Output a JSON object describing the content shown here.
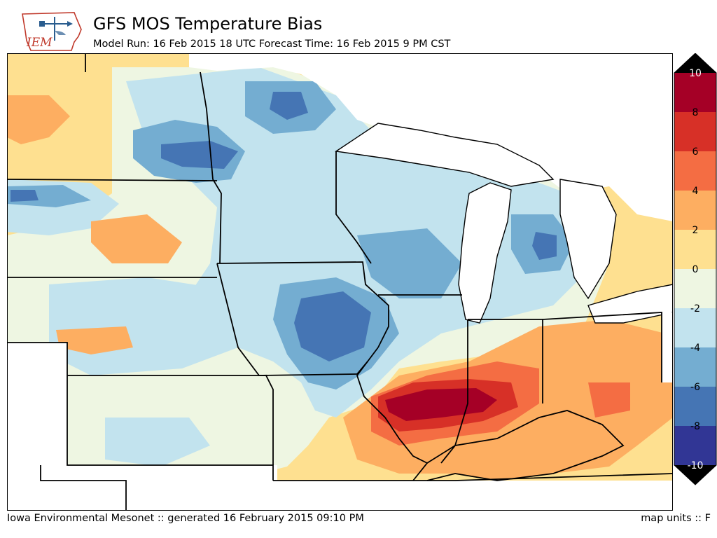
{
  "header": {
    "logo_text": "IEM",
    "title": "GFS MOS Temperature Bias",
    "subtitle": "Model Run: 16 Feb 2015 18 UTC Forecast Time: 16 Feb 2015 9 PM CST"
  },
  "footer": {
    "credit": "Iowa Environmental Mesonet :: generated 16 February 2015 09:10 PM",
    "units": "map units :: F"
  },
  "colorbar": {
    "ticks": [
      "10",
      "8",
      "6",
      "4",
      "2",
      "0",
      "-2",
      "-4",
      "-6",
      "-8",
      "-10"
    ],
    "colors": [
      "#a50026",
      "#d73027",
      "#f46d43",
      "#fdae61",
      "#fee090",
      "#ffffbf",
      "#e0f3f8",
      "#abd9e9",
      "#74add1",
      "#4575b4",
      "#313695"
    ],
    "levels": [
      {
        "range": "8 to 10",
        "color": "#a50026"
      },
      {
        "range": "6 to 8",
        "color": "#d73027"
      },
      {
        "range": "4 to 6",
        "color": "#f46d43"
      },
      {
        "range": "2 to 4",
        "color": "#fdae61"
      },
      {
        "range": "0 to 2",
        "color": "#fee090"
      },
      {
        "range": "-2 to 0",
        "color": "#eef6e2"
      },
      {
        "range": "-4 to -2",
        "color": "#c2e3ee"
      },
      {
        "range": "-6 to -4",
        "color": "#74add1"
      },
      {
        "range": "-8 to -6",
        "color": "#4575b4"
      },
      {
        "range": "-10 to -8",
        "color": "#313695"
      }
    ],
    "extend_max_color": "#000000",
    "extend_min_color": "#000000"
  },
  "map": {
    "region": "Upper Midwest",
    "colors": {
      "lake": "#ffffff",
      "border": "#000000"
    },
    "bias_areas": [
      {
        "area": "southern Illinois / Missouri bootheel",
        "range": "8 to 10",
        "color": "#a50026"
      },
      {
        "area": "Ohio Valley",
        "range": "2 to 6",
        "color": "#fdae61"
      },
      {
        "area": "eastern Iowa",
        "range": "-8 to -6",
        "color": "#4575b4"
      },
      {
        "area": "northern Minnesota",
        "range": "-8 to -6",
        "color": "#4575b4"
      },
      {
        "area": "Michigan lower peninsula",
        "range": "-6 to -4",
        "color": "#74add1"
      }
    ]
  }
}
